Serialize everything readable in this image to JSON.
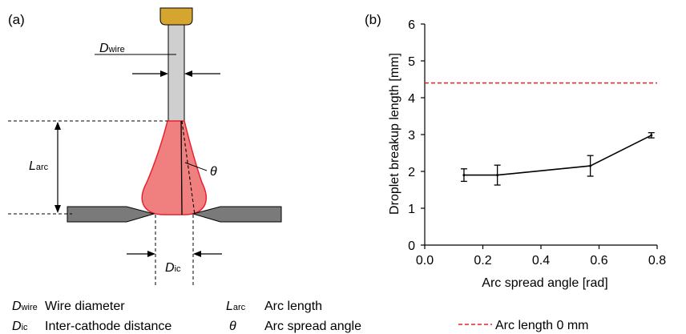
{
  "panel_a": {
    "label": "(a)",
    "dim_wire": {
      "main": "D",
      "sub": "wire"
    },
    "dim_arc": {
      "main": "L",
      "sub": "arc"
    },
    "dim_ic": {
      "main": "D",
      "sub": "ic"
    },
    "theta": "θ"
  },
  "legend_a": [
    {
      "sym": "D",
      "sub": "wire",
      "desc": "Wire diameter"
    },
    {
      "sym": "D",
      "sub": "ic",
      "desc": "Inter-cathode distance"
    },
    {
      "sym": "L",
      "sub": "arc",
      "desc": "Arc length"
    },
    {
      "sym": "θ",
      "sub": "",
      "desc": "Arc spread angle"
    }
  ],
  "colors": {
    "arc_fill": "#f08080",
    "arc_stroke": "#e8202c",
    "wire_fill": "#cfcfcf",
    "tip_fill": "#d6a530",
    "cathode_fill": "#7a7a7a",
    "reference_line": "#e8202c"
  },
  "chart_data": {
    "type": "line",
    "panel_label": "(b)",
    "xlabel": "Arc spread angle [rad]",
    "ylabel": "Droplet breakup length [mm]",
    "xlim": [
      0.0,
      0.8
    ],
    "ylim": [
      0,
      6
    ],
    "xticks": [
      "0.0",
      "0.2",
      "0.4",
      "0.6",
      "0.8"
    ],
    "yticks": [
      "0",
      "1",
      "2",
      "3",
      "4",
      "5",
      "6"
    ],
    "grid": false,
    "series": [
      {
        "x": [
          0.135,
          0.25,
          0.57,
          0.78
        ],
        "y": [
          1.9,
          1.9,
          2.15,
          2.98
        ],
        "err": [
          0.17,
          0.27,
          0.28,
          0.07
        ]
      }
    ],
    "reference_line": {
      "y": 4.4,
      "style": "dashed",
      "label": "Arc length 0 mm"
    },
    "legend_position": "bottom"
  }
}
